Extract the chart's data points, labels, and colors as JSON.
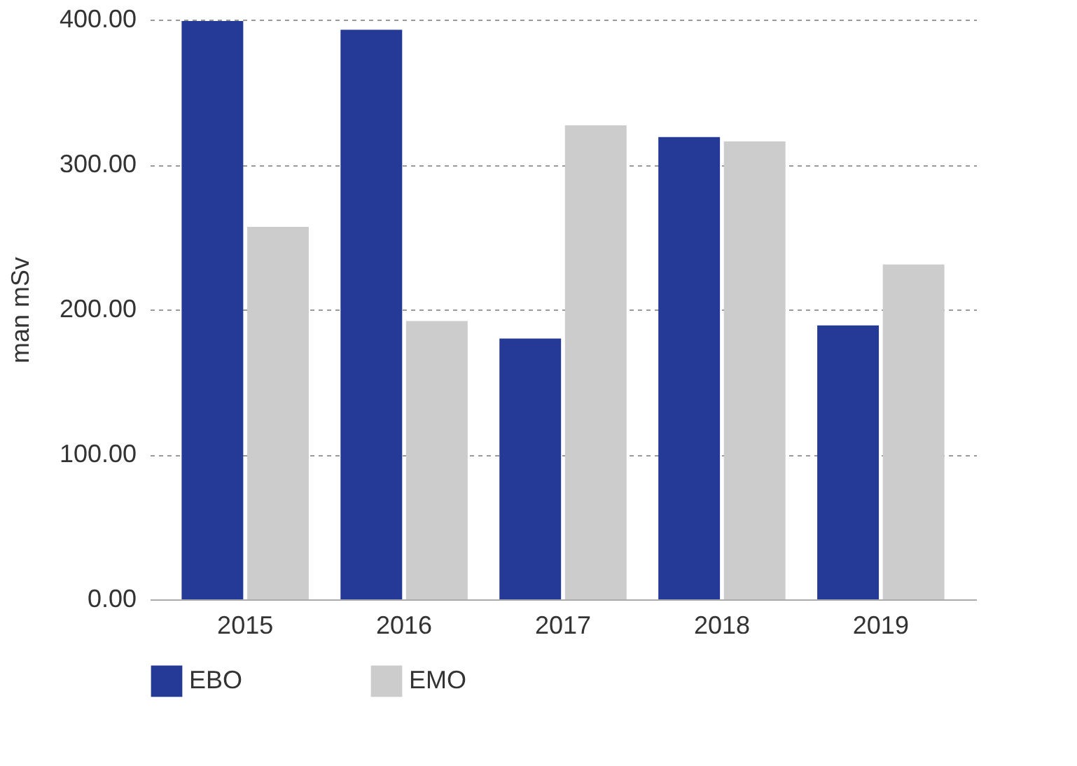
{
  "chart_data": {
    "type": "bar",
    "ylabel": "man mSv",
    "categories": [
      "2015",
      "2016",
      "2017",
      "2018",
      "2019"
    ],
    "series": [
      {
        "name": "EBO",
        "color": "#253a96",
        "values": [
          399,
          393,
          180,
          319,
          189
        ]
      },
      {
        "name": "EMO",
        "color": "#cccccc",
        "values": [
          257,
          192,
          327,
          316,
          231
        ]
      }
    ],
    "ylim": [
      0,
      400
    ],
    "yticks": [
      {
        "value": 0,
        "label": "0.00"
      },
      {
        "value": 100,
        "label": "100.00"
      },
      {
        "value": 200,
        "label": "200.00"
      },
      {
        "value": 300,
        "label": "300.00"
      },
      {
        "value": 400,
        "label": "400.00"
      }
    ],
    "grid": "y",
    "legend": "bottom"
  }
}
